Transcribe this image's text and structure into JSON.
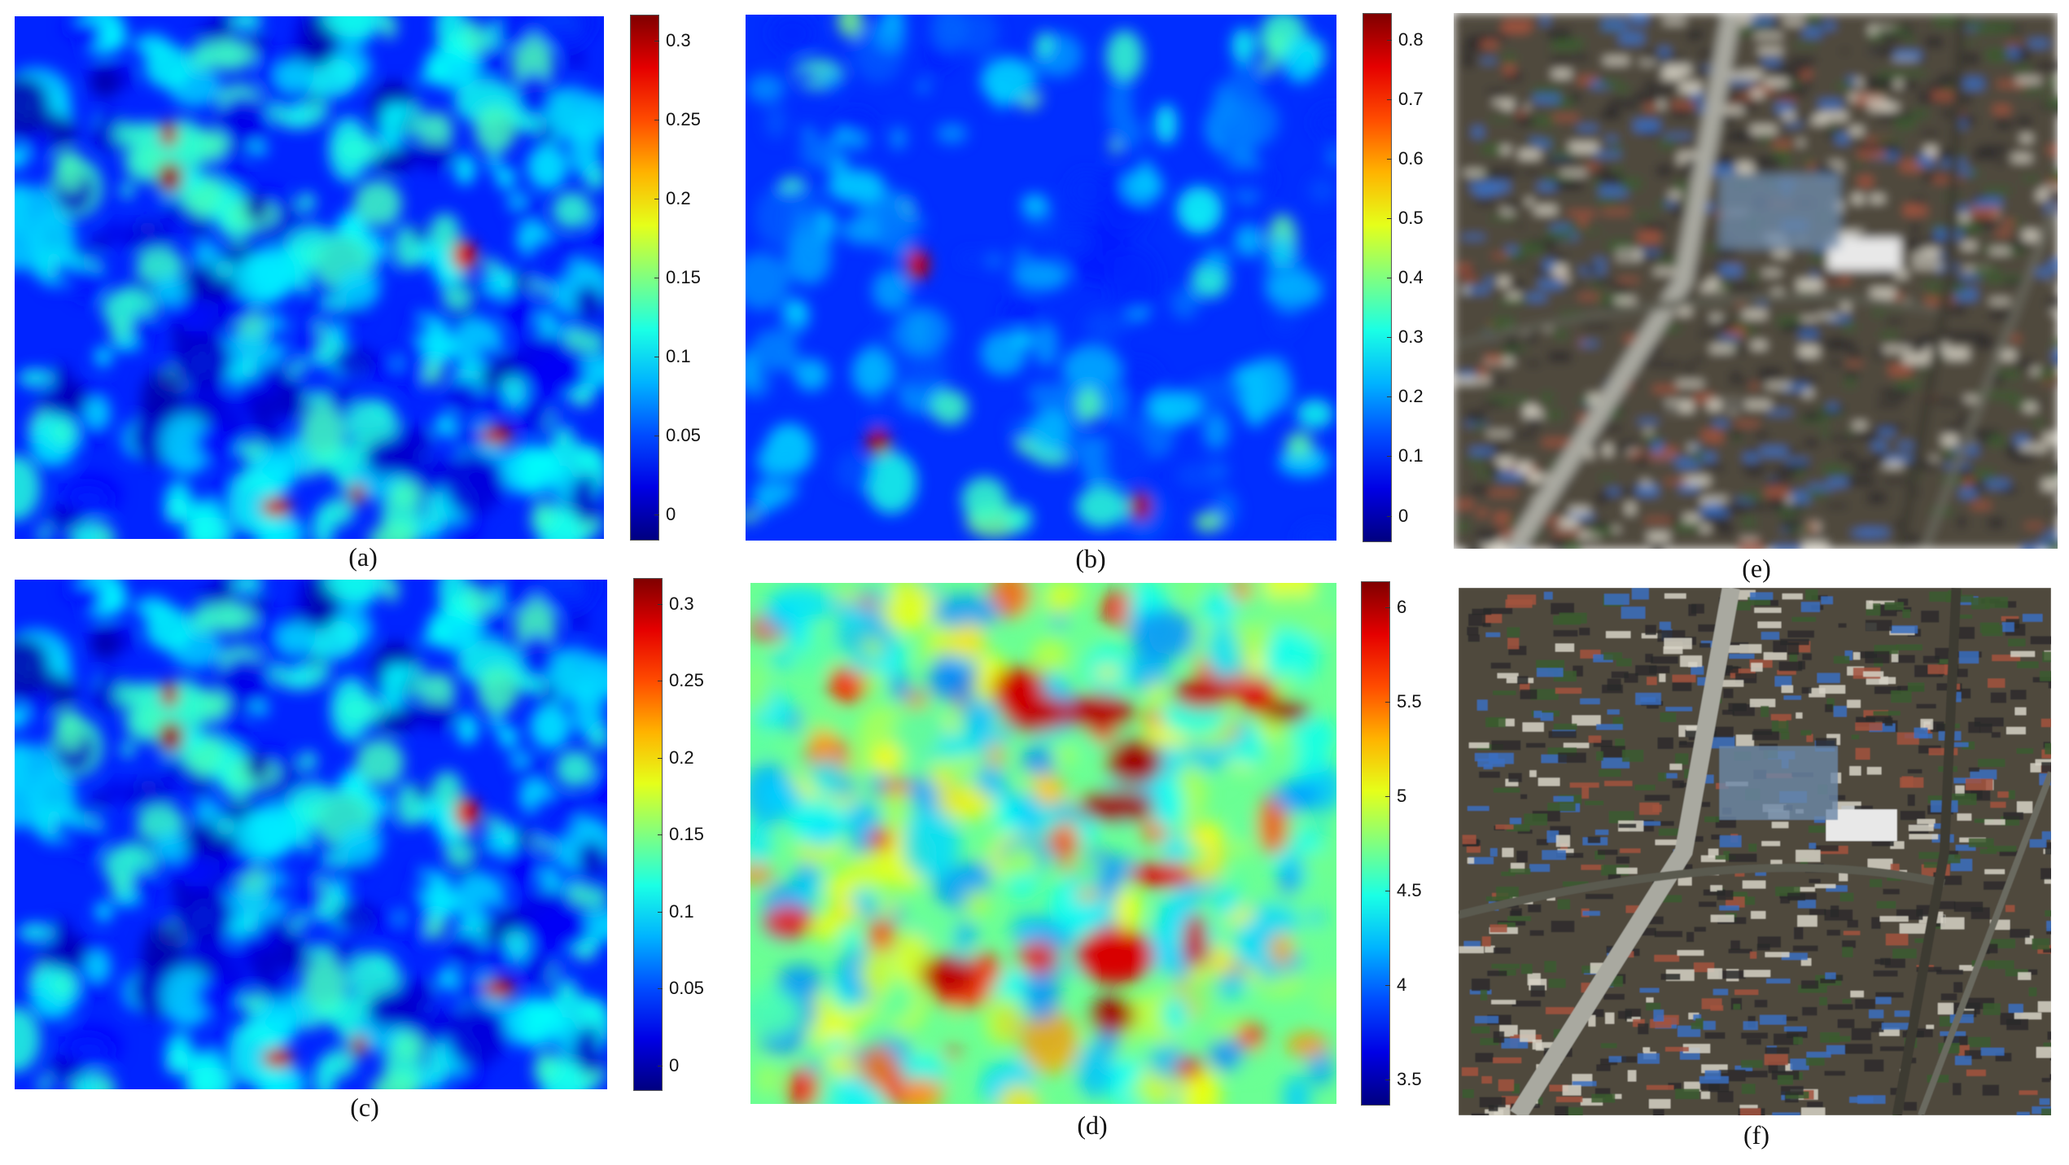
{
  "panels": [
    {
      "id": "a",
      "label": "(a)",
      "kind": "heatmap",
      "colormap": "jet",
      "seed": 11,
      "theme": "low",
      "colorbar_ticks": [
        "0",
        "0.05",
        "0.1",
        "0.15",
        "0.2",
        "0.25",
        "0.3"
      ]
    },
    {
      "id": "b",
      "label": "(b)",
      "kind": "heatmap",
      "colormap": "jet",
      "seed": 23,
      "theme": "sparse",
      "colorbar_ticks": [
        "0",
        "0.1",
        "0.2",
        "0.3",
        "0.4",
        "0.5",
        "0.6",
        "0.7",
        "0.8"
      ]
    },
    {
      "id": "c",
      "label": "(c)",
      "kind": "heatmap",
      "colormap": "jet",
      "seed": 11,
      "theme": "low",
      "colorbar_ticks": [
        "0",
        "0.05",
        "0.1",
        "0.15",
        "0.2",
        "0.25",
        "0.3"
      ]
    },
    {
      "id": "d",
      "label": "(d)",
      "kind": "heatmap",
      "colormap": "jet",
      "seed": 37,
      "theme": "high",
      "colorbar_ticks": [
        "3.5",
        "4",
        "4.5",
        "5",
        "5.5",
        "6"
      ]
    },
    {
      "id": "e",
      "label": "(e)",
      "kind": "photo",
      "variant": "blurred-aerial"
    },
    {
      "id": "f",
      "label": "(f)",
      "kind": "photo",
      "variant": "sharp-aerial"
    }
  ],
  "colors": {
    "jet_low": "#00008f",
    "jet_mid": "#7fff7f",
    "jet_high": "#800000",
    "road": "#a9a9a0",
    "roof_blue": "#3a6fc0",
    "roof_red": "#a2523e",
    "vegetation": "#3b5a2e"
  }
}
